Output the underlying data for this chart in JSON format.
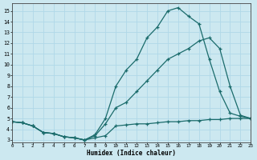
{
  "xlabel": "Humidex (Indice chaleur)",
  "bg_color": "#cce8f0",
  "grid_color": "#b0d8e8",
  "line_color": "#1a6b6b",
  "xlim": [
    0,
    23
  ],
  "ylim": [
    2.8,
    15.7
  ],
  "xticks": [
    0,
    1,
    2,
    3,
    4,
    5,
    6,
    7,
    8,
    9,
    10,
    11,
    12,
    13,
    14,
    15,
    16,
    17,
    18,
    19,
    20,
    21,
    22,
    23
  ],
  "yticks": [
    3,
    4,
    5,
    6,
    7,
    8,
    9,
    10,
    11,
    12,
    13,
    14,
    15
  ],
  "curve_bot_x": [
    0,
    1,
    2,
    3,
    4,
    5,
    6,
    7,
    8,
    9,
    10,
    11,
    12,
    13,
    14,
    15,
    16,
    17,
    18,
    19,
    20,
    21,
    22,
    23
  ],
  "curve_bot_y": [
    4.7,
    4.6,
    4.3,
    3.7,
    3.6,
    3.3,
    3.2,
    3.0,
    3.2,
    3.4,
    4.3,
    4.4,
    4.5,
    4.5,
    4.6,
    4.7,
    4.7,
    4.8,
    4.8,
    4.9,
    4.9,
    5.0,
    5.0,
    5.0
  ],
  "curve_mid_x": [
    0,
    1,
    2,
    3,
    4,
    5,
    6,
    7,
    8,
    9,
    10,
    11,
    12,
    13,
    14,
    15,
    16,
    17,
    18,
    19,
    20,
    21,
    22,
    23
  ],
  "curve_mid_y": [
    4.7,
    4.6,
    4.3,
    3.7,
    3.6,
    3.3,
    3.2,
    3.0,
    3.4,
    4.5,
    6.0,
    6.5,
    7.5,
    8.5,
    9.5,
    10.5,
    11.0,
    11.5,
    12.2,
    12.5,
    11.5,
    8.0,
    5.3,
    5.0
  ],
  "curve_top_x": [
    0,
    1,
    2,
    3,
    4,
    5,
    6,
    7,
    8,
    9,
    10,
    11,
    12,
    13,
    14,
    15,
    16,
    17,
    18,
    19,
    20,
    21,
    22,
    23
  ],
  "curve_top_y": [
    4.7,
    4.6,
    4.3,
    3.7,
    3.6,
    3.3,
    3.2,
    3.0,
    3.5,
    5.0,
    8.0,
    9.5,
    10.5,
    12.5,
    13.5,
    15.0,
    15.3,
    14.5,
    13.8,
    10.5,
    7.5,
    5.5,
    5.2,
    5.0
  ]
}
